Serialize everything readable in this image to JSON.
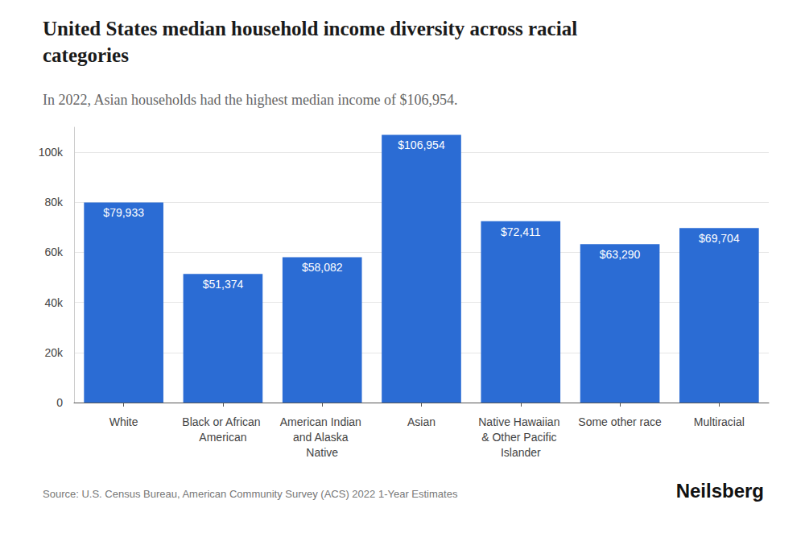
{
  "chart_data": {
    "type": "bar",
    "title": "United States median household income diversity across racial categories",
    "subtitle": "In 2022, Asian households had the highest median income of $106,954.",
    "source": "Source: U.S. Census Bureau, American Community Survey (ACS) 2022 1-Year Estimates",
    "brand": "Neilsberg",
    "categories": [
      "White",
      "Black or African American",
      "American Indian and Alaska Native",
      "Asian",
      "Native Hawaiian & Other Pacific Islander",
      "Some other race",
      "Multiracial"
    ],
    "values": [
      79933,
      51374,
      58082,
      106954,
      72411,
      63290,
      69704
    ],
    "value_labels": [
      "$79,933",
      "$51,374",
      "$58,082",
      "$106,954",
      "$72,411",
      "$63,290",
      "$69,704"
    ],
    "color": "#2b6cd4",
    "ylim": [
      0,
      110000
    ],
    "yticks": [
      0,
      {
        "value": 20000,
        "label": "20k"
      },
      {
        "value": 40000,
        "label": "40k"
      },
      {
        "value": 60000,
        "label": "60k"
      },
      {
        "value": 80000,
        "label": "80k"
      },
      {
        "value": 100000,
        "label": "100k"
      }
    ],
    "grid": true,
    "data_labels": true
  }
}
